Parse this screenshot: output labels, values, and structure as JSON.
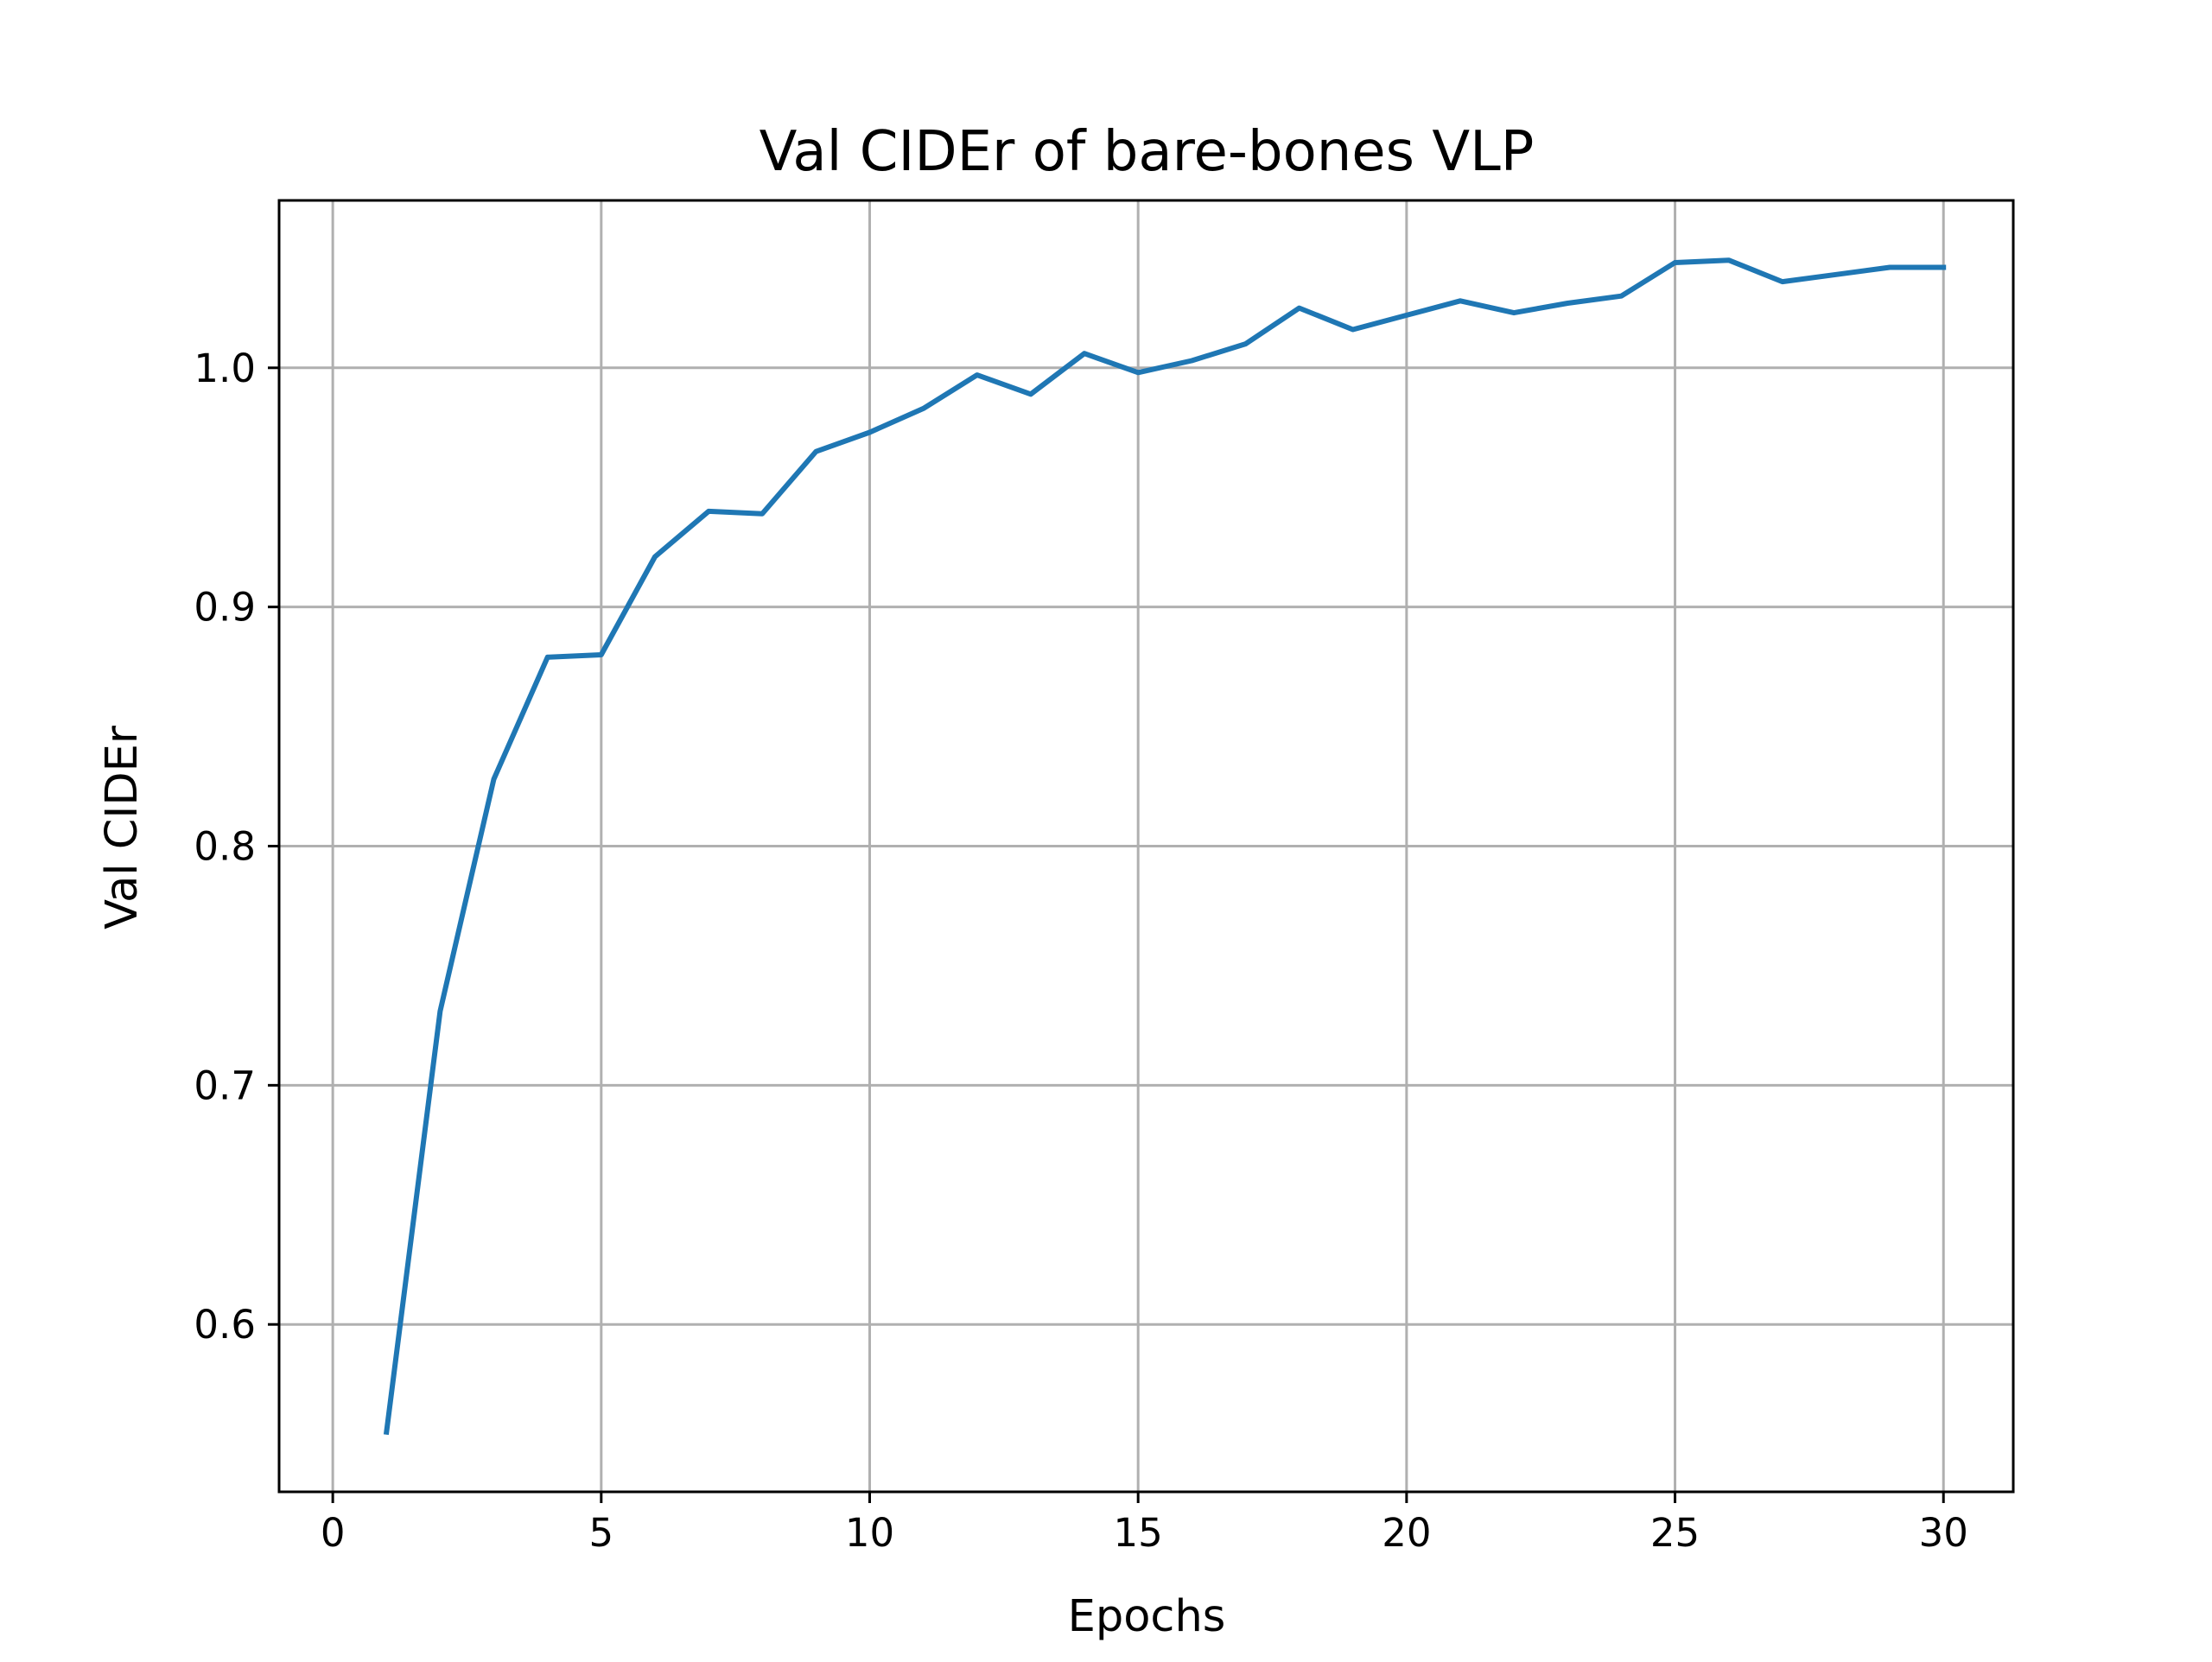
{
  "chart_data": {
    "type": "line",
    "title": "Val CIDEr of bare-bones VLP",
    "xlabel": "Epochs",
    "ylabel": "Val CIDEr",
    "xlim": [
      -1,
      31.3
    ],
    "ylim": [
      0.53,
      1.07
    ],
    "xticks": [
      0,
      5,
      10,
      15,
      20,
      25,
      30
    ],
    "xtick_labels": [
      "0",
      "5",
      "10",
      "15",
      "20",
      "25",
      "30"
    ],
    "yticks": [
      0.6,
      0.7,
      0.8,
      0.9,
      1.0
    ],
    "ytick_labels": [
      "0.6",
      "0.7",
      "0.8",
      "0.9",
      "1.0"
    ],
    "grid": true,
    "legend": "none",
    "series": [
      {
        "color": "#1f77b4",
        "x": [
          1,
          2,
          3,
          4,
          5,
          6,
          7,
          8,
          9,
          10,
          11,
          12,
          13,
          14,
          15,
          16,
          17,
          18,
          19,
          20,
          21,
          22,
          23,
          24,
          25,
          26,
          27,
          28,
          29,
          30
        ],
        "y": [
          0.555,
          0.731,
          0.828,
          0.879,
          0.88,
          0.921,
          0.94,
          0.939,
          0.965,
          0.973,
          0.983,
          0.997,
          0.989,
          1.006,
          0.998,
          1.003,
          1.01,
          1.025,
          1.016,
          1.022,
          1.028,
          1.023,
          1.027,
          1.03,
          1.044,
          1.045,
          1.036,
          1.039,
          1.042,
          1.042
        ]
      }
    ]
  },
  "colors": {
    "line": "#1f77b4",
    "grid": "#b0b0b0",
    "axes": "#000000",
    "background": "#ffffff"
  }
}
